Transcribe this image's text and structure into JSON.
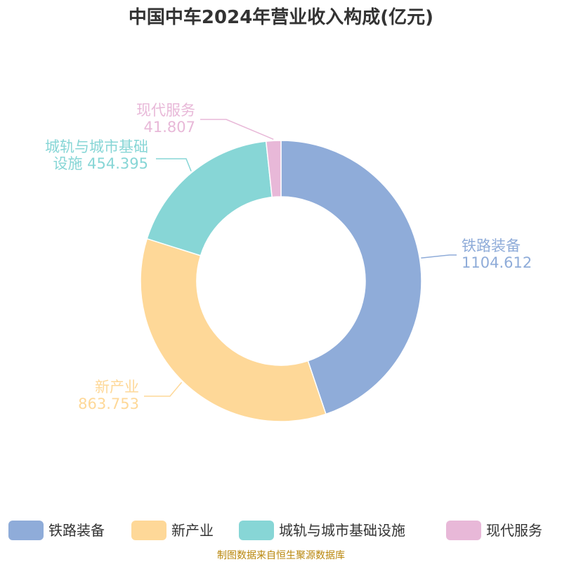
{
  "chart_data": {
    "type": "pie",
    "title": "中国中车2024年营业收入构成(亿元)",
    "slices": [
      {
        "name": "铁路装备",
        "label_line1": "铁路装备",
        "label_line2": "1104.612",
        "value": 1104.612,
        "color": "#8facd9"
      },
      {
        "name": "新产业",
        "label_line1": "新产业",
        "label_line2": "863.753",
        "value": 863.753,
        "color": "#fed898"
      },
      {
        "name": "城轨与城市基础设施",
        "label_line1": "城轨与城市基础",
        "label_line2": "设施 454.395",
        "value": 454.395,
        "color": "#87d6d6"
      },
      {
        "name": "现代服务",
        "label_line1": "现代服务",
        "label_line2": "41.807",
        "value": 41.807,
        "color": "#e8b8d8"
      }
    ],
    "legend_position": "bottom",
    "source": "制图数据来自恒生聚源数据库"
  }
}
